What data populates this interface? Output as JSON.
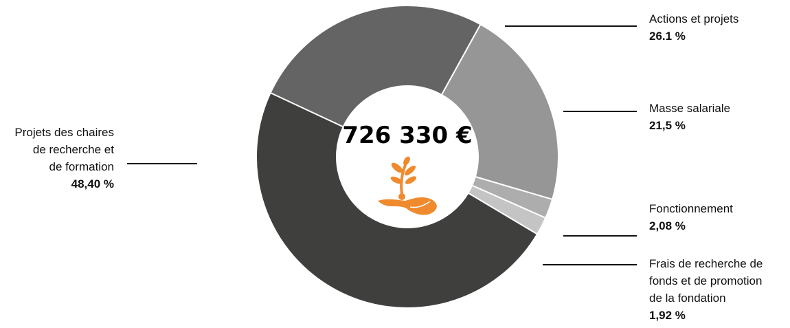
{
  "chart_data": {
    "type": "pie",
    "center_label": "726 330 €",
    "center_icon": "hand-with-sprout-icon",
    "slices": [
      {
        "label_lines": [
          "Actions et projets"
        ],
        "value": 26.1,
        "value_label": "26.1 %",
        "color": "#646464"
      },
      {
        "label_lines": [
          "Masse salariale"
        ],
        "value": 21.5,
        "value_label": "21,5 %",
        "color": "#969696"
      },
      {
        "label_lines": [
          "Fonctionnement"
        ],
        "value": 2.08,
        "value_label": "2,08 %",
        "color": "#adadad"
      },
      {
        "label_lines": [
          "Frais de recherche de",
          "fonds et de promotion",
          "de la fondation"
        ],
        "value": 1.92,
        "value_label": "1,92 %",
        "color": "#c4c4c4"
      },
      {
        "label_lines": [
          "Projets des chaires",
          "de recherche et",
          "de formation"
        ],
        "value": 48.4,
        "value_label": "48,40 %",
        "color": "#3f3f3e"
      }
    ],
    "icon_color": "#ef8a2e"
  }
}
